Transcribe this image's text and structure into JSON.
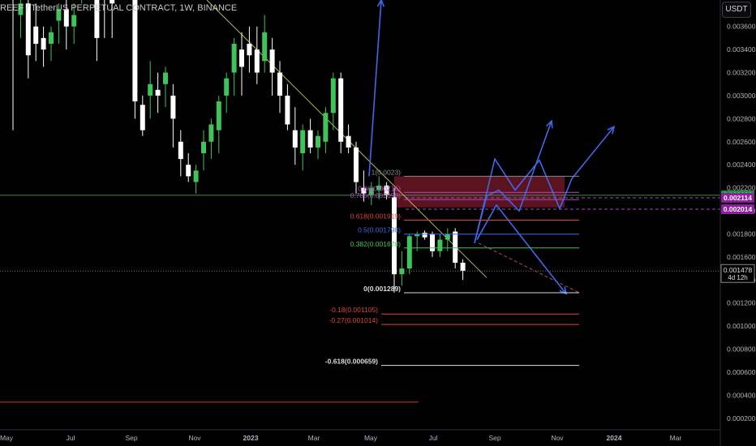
{
  "header": {
    "title": "REEF / TetherUS PERPETUAL CONTRACT, 1W, BINANCE",
    "unit_button": "USDT"
  },
  "colors": {
    "up": "#3fc35a",
    "down": "#ffffff",
    "trend_line": "#b5b54d",
    "arrows": "#3f67e8",
    "zone": "#7a1a2a",
    "green_price_tag": "#1f8f3a",
    "purple_price_tag": "#8e1fa0"
  },
  "chart_data": {
    "type": "candlestick",
    "title": "REEF / TetherUS PERPETUAL CONTRACT, 1W, BINANCE",
    "ylim": [
      0.0001,
      0.00383
    ],
    "y_ticks": [
      "0.003600",
      "0.003400",
      "0.003200",
      "0.003000",
      "0.002800",
      "0.002600",
      "0.002400",
      "0.002200",
      "0.002000",
      "0.001800",
      "0.001600",
      "0.001400",
      "0.001200",
      "0.001000",
      "0.000800",
      "0.000600",
      "0.000400",
      "0.000200"
    ],
    "x_ticks": [
      "May",
      "Jul",
      "Sep",
      "Nov",
      "2023",
      "Mar",
      "May",
      "Jul",
      "Sep",
      "Nov",
      "2024",
      "Mar"
    ],
    "candles": [
      {
        "o": 0.0043,
        "h": 0.0044,
        "l": 0.0027,
        "c": 0.004
      },
      {
        "o": 0.0037,
        "h": 0.0039,
        "l": 0.0035,
        "c": 0.0038
      },
      {
        "o": 0.0038,
        "h": 0.0039,
        "l": 0.00315,
        "c": 0.00335
      },
      {
        "o": 0.0036,
        "h": 0.0038,
        "l": 0.0033,
        "c": 0.00345
      },
      {
        "o": 0.0035,
        "h": 0.0036,
        "l": 0.00325,
        "c": 0.0034
      },
      {
        "o": 0.00345,
        "h": 0.0036,
        "l": 0.0033,
        "c": 0.00355
      },
      {
        "o": 0.00365,
        "h": 0.0038,
        "l": 0.00345,
        "c": 0.00375
      },
      {
        "o": 0.00375,
        "h": 0.0039,
        "l": 0.0034,
        "c": 0.0036
      },
      {
        "o": 0.0036,
        "h": 0.0038,
        "l": 0.00345,
        "c": 0.0037
      },
      {
        "o": 0.004,
        "h": 0.0042,
        "l": 0.0038,
        "c": 0.004
      },
      {
        "o": 0.0041,
        "h": 0.0042,
        "l": 0.0039,
        "c": 0.00405
      },
      {
        "o": 0.004,
        "h": 0.0042,
        "l": 0.0033,
        "c": 0.0035
      },
      {
        "o": 0.0039,
        "h": 0.0041,
        "l": 0.0035,
        "c": 0.00385
      },
      {
        "o": 0.0039,
        "h": 0.0041,
        "l": 0.0035,
        "c": 0.0038
      },
      {
        "o": 0.0042,
        "h": 0.0044,
        "l": 0.00385,
        "c": 0.00405
      },
      {
        "o": 0.0044,
        "h": 0.0045,
        "l": 0.004,
        "c": 0.0042
      },
      {
        "o": 0.0039,
        "h": 0.0041,
        "l": 0.0028,
        "c": 0.00295
      },
      {
        "o": 0.00292,
        "h": 0.003,
        "l": 0.00265,
        "c": 0.0027
      },
      {
        "o": 0.003,
        "h": 0.0033,
        "l": 0.0028,
        "c": 0.0031
      },
      {
        "o": 0.00305,
        "h": 0.0032,
        "l": 0.00285,
        "c": 0.003
      },
      {
        "o": 0.0031,
        "h": 0.00325,
        "l": 0.0029,
        "c": 0.0032
      },
      {
        "o": 0.003,
        "h": 0.0031,
        "l": 0.00255,
        "c": 0.0028
      },
      {
        "o": 0.0026,
        "h": 0.0027,
        "l": 0.0023,
        "c": 0.00245
      },
      {
        "o": 0.0024,
        "h": 0.0025,
        "l": 0.00225,
        "c": 0.0023
      },
      {
        "o": 0.00225,
        "h": 0.0024,
        "l": 0.00215,
        "c": 0.00235
      },
      {
        "o": 0.0025,
        "h": 0.0027,
        "l": 0.00235,
        "c": 0.0026
      },
      {
        "o": 0.0026,
        "h": 0.0028,
        "l": 0.00245,
        "c": 0.00275
      },
      {
        "o": 0.0027,
        "h": 0.003,
        "l": 0.0025,
        "c": 0.00295
      },
      {
        "o": 0.003,
        "h": 0.0032,
        "l": 0.00285,
        "c": 0.00315
      },
      {
        "o": 0.0032,
        "h": 0.0035,
        "l": 0.003,
        "c": 0.00345
      },
      {
        "o": 0.0034,
        "h": 0.00355,
        "l": 0.003,
        "c": 0.00325
      },
      {
        "o": 0.00345,
        "h": 0.0036,
        "l": 0.0032,
        "c": 0.00335
      },
      {
        "o": 0.0034,
        "h": 0.0036,
        "l": 0.0031,
        "c": 0.0032
      },
      {
        "o": 0.0033,
        "h": 0.0037,
        "l": 0.0032,
        "c": 0.00355
      },
      {
        "o": 0.0034,
        "h": 0.0035,
        "l": 0.003,
        "c": 0.0032
      },
      {
        "o": 0.0032,
        "h": 0.0033,
        "l": 0.00285,
        "c": 0.003
      },
      {
        "o": 0.003,
        "h": 0.0031,
        "l": 0.0027,
        "c": 0.00275
      },
      {
        "o": 0.0027,
        "h": 0.0029,
        "l": 0.0024,
        "c": 0.00255
      },
      {
        "o": 0.0025,
        "h": 0.00275,
        "l": 0.00235,
        "c": 0.0027
      },
      {
        "o": 0.0027,
        "h": 0.0028,
        "l": 0.0025,
        "c": 0.00255
      },
      {
        "o": 0.00255,
        "h": 0.0027,
        "l": 0.00245,
        "c": 0.00265
      },
      {
        "o": 0.0026,
        "h": 0.0029,
        "l": 0.0025,
        "c": 0.00285
      },
      {
        "o": 0.00285,
        "h": 0.0032,
        "l": 0.0027,
        "c": 0.00315
      },
      {
        "o": 0.00315,
        "h": 0.0032,
        "l": 0.0025,
        "c": 0.0026
      },
      {
        "o": 0.00265,
        "h": 0.00275,
        "l": 0.0025,
        "c": 0.00255
      },
      {
        "o": 0.00255,
        "h": 0.0026,
        "l": 0.00215,
        "c": 0.00225
      },
      {
        "o": 0.0022,
        "h": 0.00235,
        "l": 0.00208,
        "c": 0.00215
      },
      {
        "o": 0.00214,
        "h": 0.00225,
        "l": 0.00205,
        "c": 0.0022
      },
      {
        "o": 0.00218,
        "h": 0.0023,
        "l": 0.0021,
        "c": 0.00222
      },
      {
        "o": 0.00222,
        "h": 0.00225,
        "l": 0.0021,
        "c": 0.00214
      },
      {
        "o": 0.00212,
        "h": 0.0022,
        "l": 0.00129,
        "c": 0.00145
      },
      {
        "o": 0.00145,
        "h": 0.00165,
        "l": 0.00135,
        "c": 0.0015
      },
      {
        "o": 0.0015,
        "h": 0.0018,
        "l": 0.00145,
        "c": 0.00178
      },
      {
        "o": 0.00178,
        "h": 0.00182,
        "l": 0.00165,
        "c": 0.0018
      },
      {
        "o": 0.00181,
        "h": 0.00183,
        "l": 0.00175,
        "c": 0.00177
      },
      {
        "o": 0.0018,
        "h": 0.00182,
        "l": 0.0016,
        "c": 0.00165
      },
      {
        "o": 0.00165,
        "h": 0.0018,
        "l": 0.0016,
        "c": 0.00175
      },
      {
        "o": 0.00175,
        "h": 0.00185,
        "l": 0.00165,
        "c": 0.0018
      },
      {
        "o": 0.00182,
        "h": 0.00185,
        "l": 0.0015,
        "c": 0.00155
      },
      {
        "o": 0.00155,
        "h": 0.00158,
        "l": 0.0014,
        "c": 0.00148
      }
    ],
    "fibonacci_levels": [
      {
        "label": "1(0.0023)",
        "price": 0.0023,
        "color": "#8a8a8a"
      },
      {
        "label": "0.86(0.00216)",
        "price": 0.00216,
        "color": "#b04bc0"
      },
      {
        "label": "0.786(0.002098)",
        "price": 0.002098,
        "color": "#b04bc0"
      },
      {
        "label": "0.618(0.001919)",
        "price": 0.001919,
        "color": "#e0443a"
      },
      {
        "label": "0.5(0.001798)",
        "price": 0.001798,
        "color": "#3f67e8"
      },
      {
        "label": "0.382(0.001678)",
        "price": 0.001678,
        "color": "#3fc35a"
      },
      {
        "label": "0(0.001289)",
        "price": 0.001289,
        "color": "#dddddd"
      },
      {
        "label": "-0.18(0.001105)",
        "price": 0.001105,
        "color": "#e0443a"
      },
      {
        "label": "-0.27(0.001014)",
        "price": 0.001014,
        "color": "#e0443a"
      },
      {
        "label": "-0.618(0.000659)",
        "price": 0.000659,
        "color": "#dddddd"
      }
    ],
    "price_tags": [
      {
        "label": "0.002136",
        "price": 0.002136,
        "bg": "#1f8f3a",
        "color": "#ffffff"
      },
      {
        "label": "0.002114",
        "price": 0.002114,
        "bg": "#8e1fa0",
        "color": "#ffffff"
      },
      {
        "label": "0.002014",
        "price": 0.002014,
        "bg": "#8e1fa0",
        "color": "#ffffff"
      }
    ],
    "current_price": {
      "label": "0.001478",
      "countdown": "4d 12h",
      "price": 0.001478
    }
  }
}
